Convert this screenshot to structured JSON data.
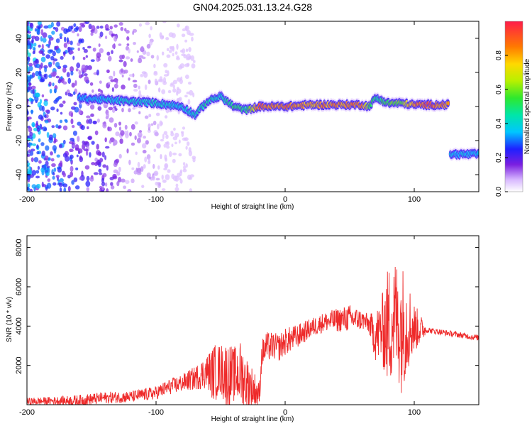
{
  "title": "GN04.2025.031.13.24.G28",
  "chart_data": [
    {
      "type": "heatmap",
      "xlabel": "Height of straight line (km)",
      "ylabel": "Frequency (Hz)",
      "xlim": [
        -200,
        150
      ],
      "ylim": [
        -50,
        50
      ],
      "xticks": [
        -200,
        -100,
        0,
        100
      ],
      "yticks": [
        -40,
        -20,
        0,
        20,
        40
      ],
      "colorbar": {
        "label": "Normalized spectral amplitude",
        "range": [
          0,
          1
        ],
        "ticks": [
          "0.0",
          "0.2",
          "0.4",
          "0.6",
          "0.8"
        ]
      },
      "traces": [
        {
          "x": [
            -160,
            -140,
            -120,
            -100,
            -80,
            -70,
            -60,
            -50,
            -40,
            -30,
            -20,
            -10,
            0,
            20,
            40,
            60,
            65,
            70,
            80,
            90,
            100,
            110,
            127
          ],
          "y": [
            5,
            4,
            3,
            2,
            0,
            -5,
            3,
            6,
            0,
            -2,
            0,
            0,
            0,
            1,
            1,
            1,
            0,
            5,
            2,
            2,
            1,
            1,
            1
          ],
          "amplitude": [
            0.35,
            0.4,
            0.45,
            0.45,
            0.4,
            0.45,
            0.5,
            0.45,
            0.55,
            0.5,
            0.95,
            0.9,
            0.95,
            0.85,
            0.9,
            0.9,
            0.6,
            0.5,
            0.6,
            0.65,
            0.9,
            0.95,
            0.9
          ]
        },
        {
          "x": [
            128,
            150
          ],
          "y": [
            -28,
            -28
          ],
          "amplitude": [
            0.4,
            0.4
          ]
        }
      ]
    },
    {
      "type": "line",
      "xlabel": "Height of straight line (km)",
      "ylabel": "SNR (10 * v/v)",
      "xlim": [
        -200,
        150
      ],
      "ylim": [
        0,
        8600
      ],
      "xticks": [
        -200,
        -100,
        0,
        100
      ],
      "yticks": [
        2000,
        4000,
        6000,
        8000
      ],
      "series": [
        {
          "color": "#ee2a2a",
          "x": [
            -200,
            -180,
            -160,
            -140,
            -120,
            -100,
            -90,
            -80,
            -70,
            -60,
            -55,
            -50,
            -45,
            -40,
            -35,
            -30,
            -25,
            -20,
            -18,
            -15,
            -10,
            -5,
            0,
            10,
            20,
            30,
            40,
            50,
            60,
            65,
            70,
            75,
            80,
            85,
            90,
            95,
            100,
            110,
            120,
            130,
            140,
            150
          ],
          "y": [
            150,
            200,
            200,
            350,
            400,
            600,
            900,
            1100,
            1350,
            1700,
            1600,
            1800,
            1500,
            1500,
            1600,
            1100,
            800,
            500,
            2600,
            2900,
            3000,
            2900,
            3200,
            3500,
            3900,
            4200,
            4300,
            4400,
            4300,
            4100,
            3500,
            3800,
            4000,
            4500,
            4000,
            4100,
            3900,
            3800,
            3700,
            3600,
            3500,
            3400
          ],
          "amplitude": [
            200,
            200,
            300,
            300,
            300,
            350,
            400,
            450,
            600,
            900,
            1500,
            1300,
            1800,
            1400,
            1700,
            1400,
            1100,
            600,
            700,
            800,
            700,
            700,
            700,
            600,
            500,
            500,
            600,
            700,
            500,
            500,
            1300,
            1800,
            3200,
            3000,
            3400,
            2400,
            1300,
            150,
            150,
            150,
            150,
            150
          ]
        }
      ]
    }
  ]
}
